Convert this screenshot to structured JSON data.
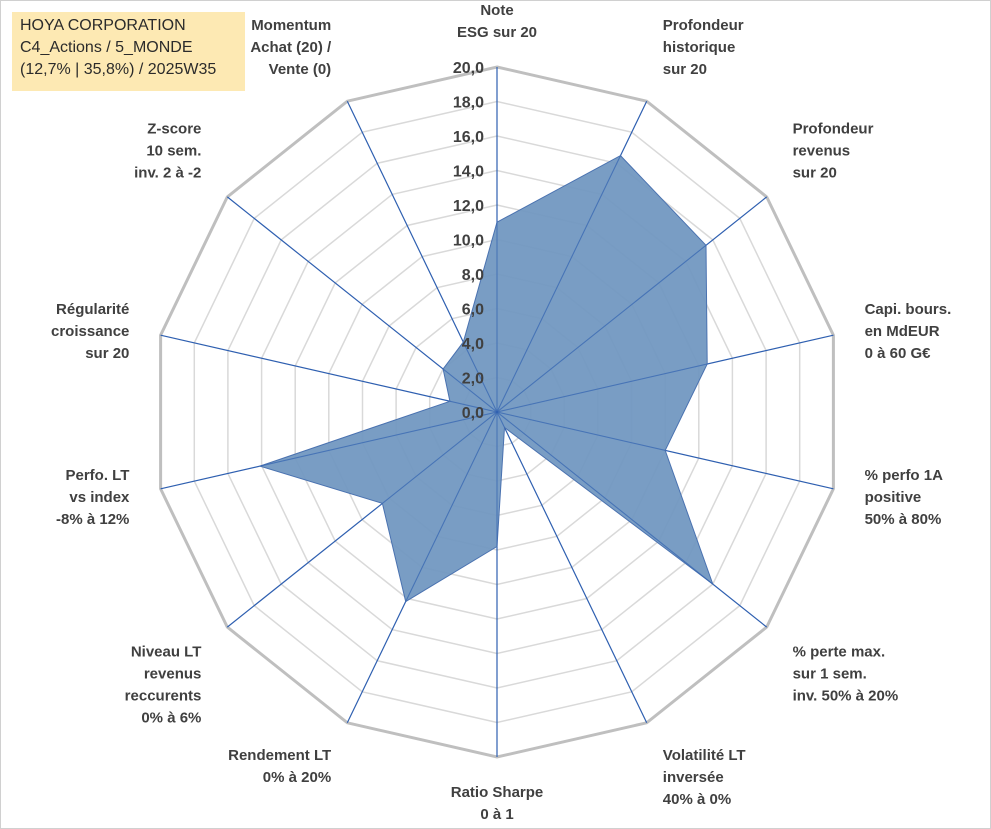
{
  "header": {
    "line1": "HOYA CORPORATION",
    "line2": "C4_Actions / 5_MONDE",
    "line3": "(12,7% | 35,8%) / 2025W35"
  },
  "colors": {
    "fill": "#6f96bf",
    "fill_stroke": "#4a72b0",
    "spoke": "#2e5fb0",
    "outer_ring": "#bfbfbf",
    "inner_ring": "#d9d9d9",
    "info_box": "#fde9b3"
  },
  "chart_data": {
    "type": "radar",
    "title": "",
    "rmin": 0,
    "rmax": 20,
    "tick_step": 2,
    "ticks": [
      "0,0",
      "2,0",
      "4,0",
      "6,0",
      "8,0",
      "10,0",
      "12,0",
      "14,0",
      "16,0",
      "18,0",
      "20,0"
    ],
    "grid": true,
    "categories": [
      [
        "Note",
        "ESG sur 20"
      ],
      [
        "Profondeur",
        "historique",
        "sur 20"
      ],
      [
        "Profondeur",
        "revenus",
        "sur 20"
      ],
      [
        "Capi. bours.",
        "en MdEUR",
        "0 à 60 G€"
      ],
      [
        "% perfo 1A",
        "positive",
        "50% à 80%"
      ],
      [
        "% perte max.",
        "sur 1 sem.",
        "inv. 50% à 20%"
      ],
      [
        "Volatilité LT",
        "inversée",
        "40% à 0%"
      ],
      [
        "Ratio Sharpe",
        "0 à 1"
      ],
      [
        "Rendement LT",
        "0% à 20%"
      ],
      [
        "Niveau LT",
        "revenus",
        "reccurents",
        "0% à 6%"
      ],
      [
        "Perfo. LT",
        "vs index",
        "-8% à 12%"
      ],
      [
        "Régularité",
        "croissance",
        "sur 20"
      ],
      [
        "Z-score",
        "10 sem.",
        "inv. 2 à -2"
      ],
      [
        "Momentum",
        "Achat (20) /",
        "Vente (0)"
      ]
    ],
    "series": [
      {
        "values": [
          11.0,
          16.5,
          15.5,
          12.5,
          10.0,
          16.0,
          1.0,
          7.8,
          12.2,
          8.5,
          14.1,
          2.8,
          4.0,
          4.5
        ]
      }
    ]
  }
}
